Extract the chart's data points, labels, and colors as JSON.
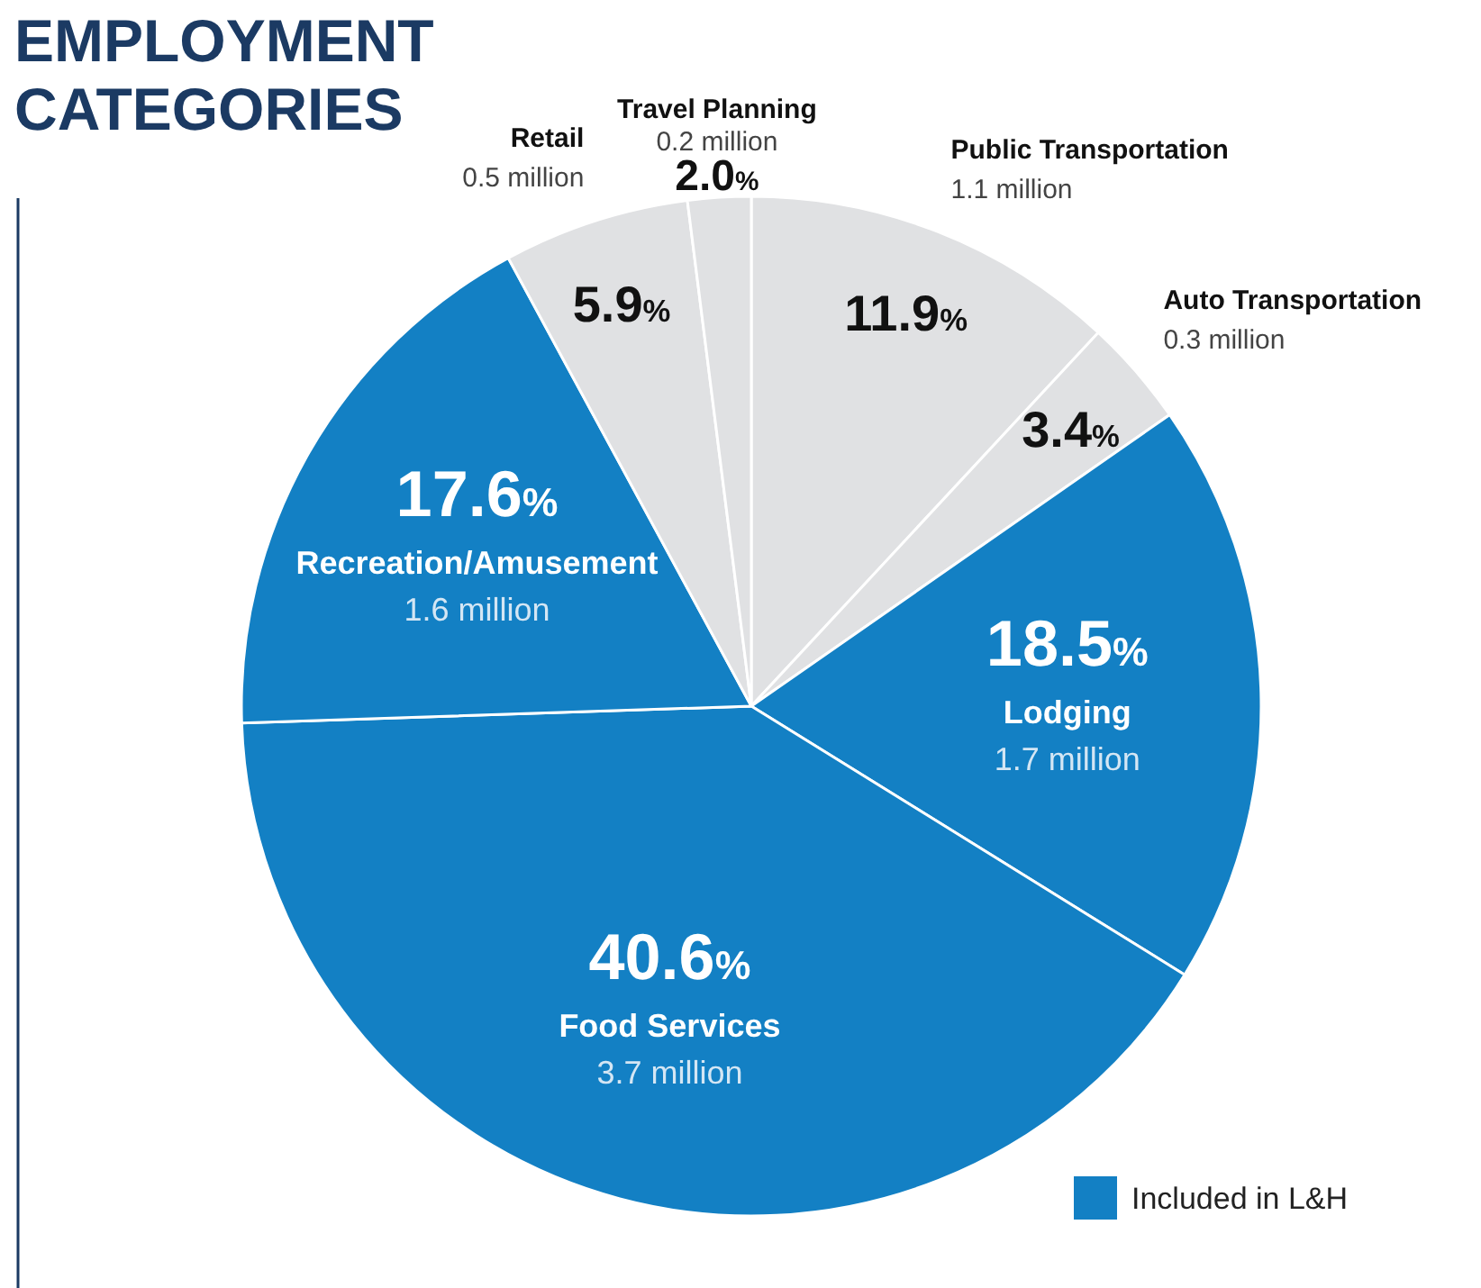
{
  "chart_data": {
    "type": "pie",
    "title": "EMPLOYMENT CATEGORIES",
    "categories": [
      "Public Transportation",
      "Auto Transportation",
      "Lodging",
      "Food Services",
      "Recreation/Amusement",
      "Retail",
      "Travel Planning"
    ],
    "values": [
      11.9,
      3.4,
      18.5,
      40.6,
      17.6,
      5.9,
      2.0
    ],
    "value_labels": [
      "11.9%",
      "3.4%",
      "18.5%",
      "40.6%",
      "17.6%",
      "5.9%",
      "2.0%"
    ],
    "colors": [
      "#e0e1e3",
      "#e0e1e3",
      "#1380c4",
      "#1380c4",
      "#1380c4",
      "#e0e1e3",
      "#e0e1e3"
    ],
    "annotations": [
      "1.1 million",
      "0.3 million",
      "1.7 million",
      "3.7 million",
      "1.6 million",
      "0.5 million",
      "0.2 million"
    ],
    "legend_title": "Included in L&H"
  }
}
